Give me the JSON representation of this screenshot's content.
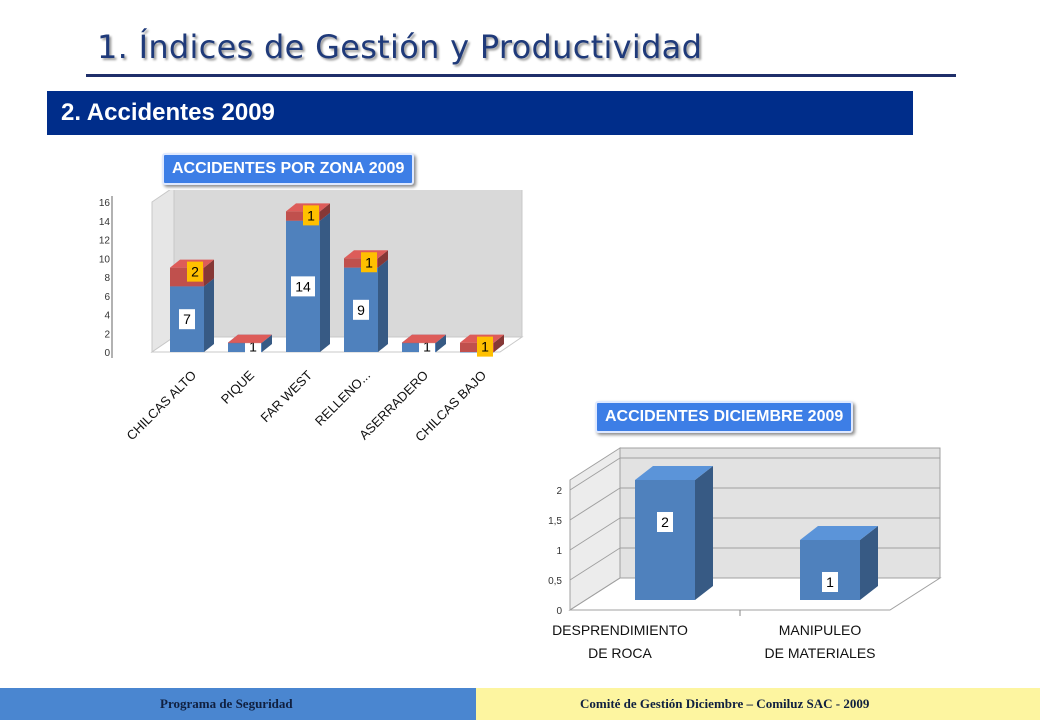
{
  "header": {
    "title": "1. Índices de Gestión y Productividad",
    "section": "2. Accidentes 2009"
  },
  "charts": {
    "zone_title": "ACCIDENTES POR ZONA 2009",
    "december_title": "ACCIDENTES DICIEMBRE 2009"
  },
  "footer": {
    "left": "Programa de Seguridad",
    "right": "Comité de Gestión Diciembre – Comiluz  SAC - 2009"
  },
  "colors": {
    "banner": "#002d8a",
    "bar_blue": "#4f81bd",
    "bar_red": "#c0504d",
    "label_yellow": "#ffc000"
  },
  "chart_data": [
    {
      "type": "bar",
      "stacked": true,
      "three_d": true,
      "categories": [
        "CHILCAS ALTO",
        "PIQUE",
        "FAR WEST",
        "RELLENO...",
        "ASERRADERO",
        "CHILCAS BAJO"
      ],
      "series": [
        {
          "values": [
            7,
            1,
            14,
            9,
            1,
            0
          ]
        },
        {
          "values": [
            2,
            0,
            1,
            1,
            0,
            1
          ]
        }
      ],
      "ylim": [
        0,
        16
      ],
      "yticks": [
        0,
        2,
        4,
        6,
        8,
        10,
        12,
        14,
        16
      ],
      "grid": false
    },
    {
      "type": "bar",
      "three_d": true,
      "categories": [
        "DESPRENDIMIENTO DE ROCA",
        "MANIPULEO DE MATERIALES"
      ],
      "values": [
        2,
        1
      ],
      "ylim": [
        0,
        2
      ],
      "yticks": [
        "0",
        "0,5",
        "1",
        "1,5",
        "2"
      ],
      "grid": true
    }
  ]
}
